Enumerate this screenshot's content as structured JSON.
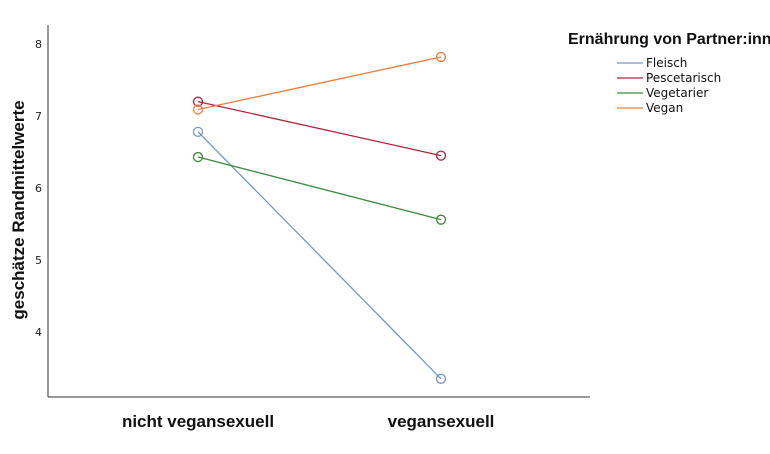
{
  "chart_data": {
    "type": "line",
    "title": "",
    "xlabel": "",
    "ylabel": "geschätze Randmittelwerte",
    "categories": [
      "nicht vegansexuell",
      "vegansexuell"
    ],
    "yticks": [
      "4",
      "5",
      "6",
      "7",
      "8"
    ],
    "ylim": [
      2.8,
      8.3
    ],
    "grid": false,
    "legend": {
      "title": "Ernährung von Partner:innen",
      "position": "top-right"
    },
    "series": [
      {
        "name": "Fleisch",
        "color": "#6f98cf",
        "values": [
          6.78,
          3.35
        ]
      },
      {
        "name": "Pescetarisch",
        "color": "#b0223c",
        "values": [
          7.2,
          6.45
        ]
      },
      {
        "name": "Vegetarier",
        "color": "#3e8a3e",
        "values": [
          6.43,
          5.56
        ]
      },
      {
        "name": "Vegan",
        "color": "#ec7d3f",
        "values": [
          7.09,
          7.82
        ]
      }
    ]
  }
}
